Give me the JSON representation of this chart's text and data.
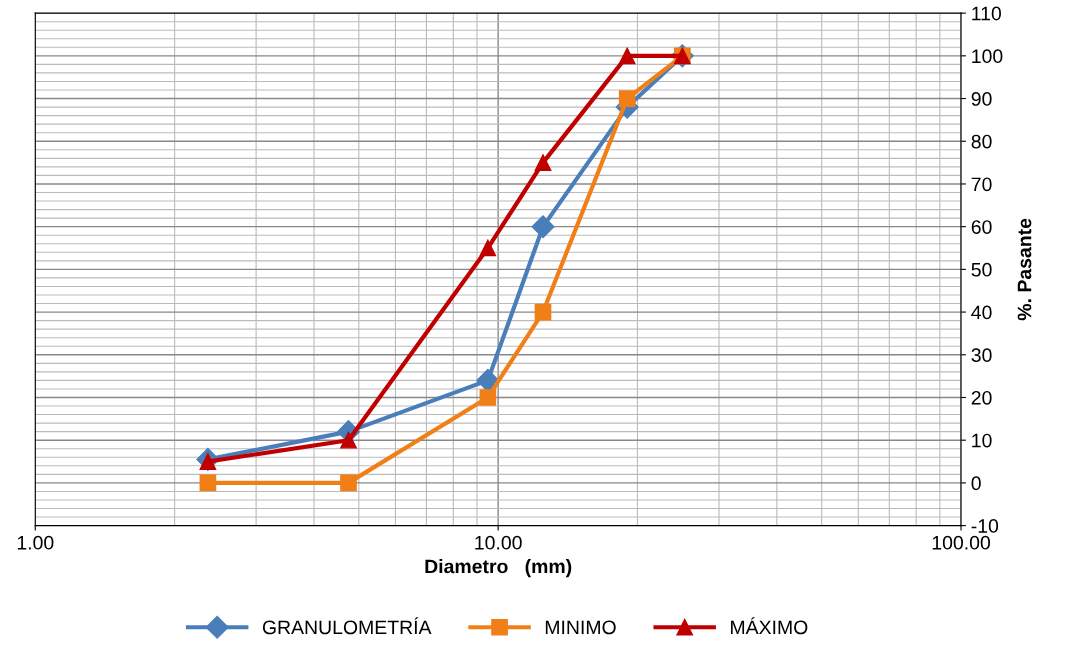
{
  "chart_data": {
    "type": "line",
    "xlabel": "Diametro   (mm)",
    "ylabel": "%. Pasante",
    "log": "x",
    "x": [
      2.36,
      4.75,
      9.5,
      12.5,
      19,
      25
    ],
    "xlim": [
      1,
      100
    ],
    "xticks": [
      {
        "value": 1,
        "label": "1.00"
      },
      {
        "value": 10,
        "label": "10.00"
      },
      {
        "value": 100,
        "label": "100.00"
      }
    ],
    "ylim": [
      -10,
      110
    ],
    "yticks": [
      -10,
      0,
      10,
      20,
      30,
      40,
      50,
      60,
      70,
      80,
      90,
      100,
      110
    ],
    "grid": true,
    "legend": "bottom",
    "series": [
      {
        "name": "GRANULOMETRÍA",
        "color": "#4a7ebb",
        "marker": "diamond",
        "values": [
          5.5,
          12,
          24,
          60,
          88,
          100
        ]
      },
      {
        "name": "MINIMO",
        "color": "#f07f17",
        "marker": "square",
        "values": [
          0,
          0,
          20,
          40,
          90,
          100
        ]
      },
      {
        "name": "MÁXIMO",
        "color": "#c00000",
        "marker": "triangle",
        "values": [
          5,
          10,
          55,
          75,
          100,
          100
        ]
      }
    ]
  }
}
